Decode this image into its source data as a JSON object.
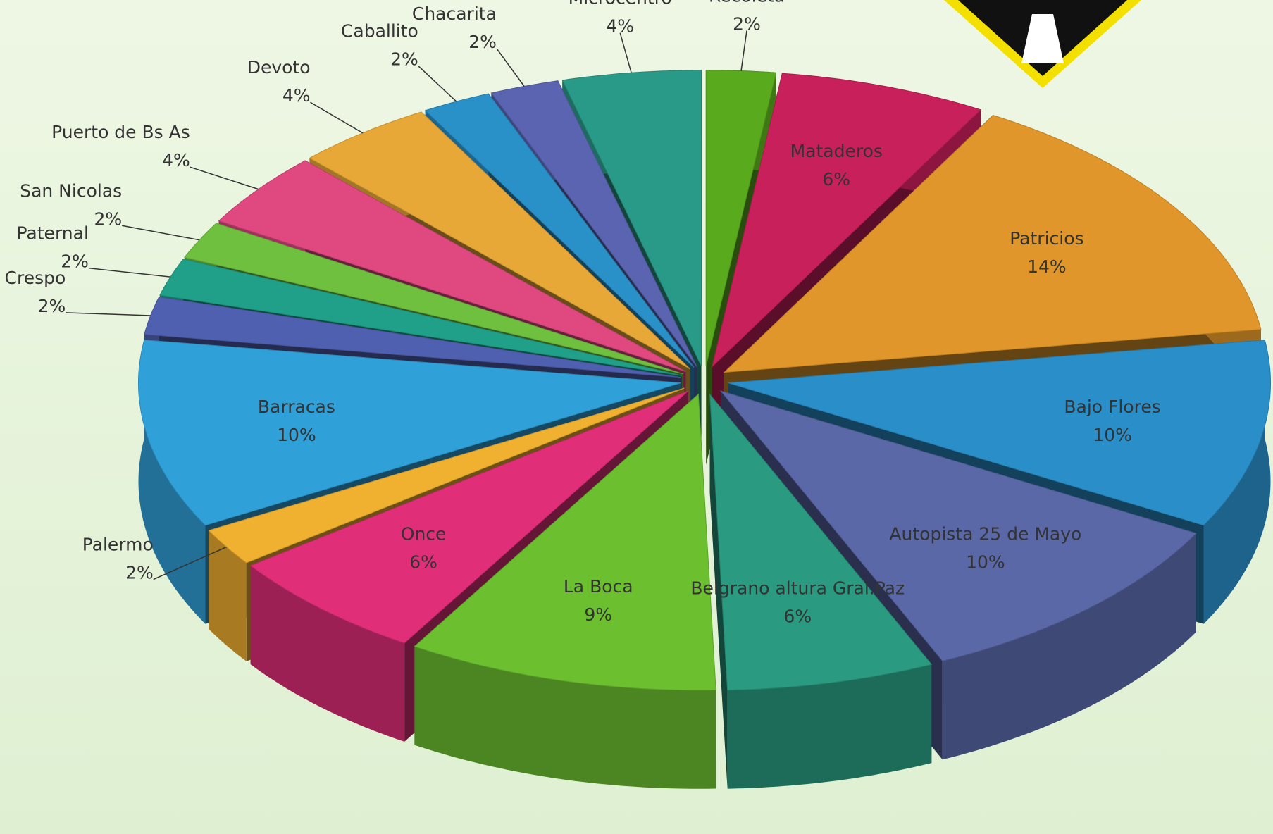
{
  "chart_data": {
    "type": "pie",
    "categories": [
      "Recoleta",
      "Mataderos",
      "Patricios",
      "Bajo Flores",
      "Autopista 25 de Mayo",
      "Belgrano altura Gral.Paz",
      "La Boca",
      "Once",
      "Palermo",
      "Barracas",
      "Villa Crespo",
      "Paternal",
      "San Nicolas",
      "Puerto de Bs As",
      "Devoto",
      "Caballito",
      "Chacarita",
      "Microcentro"
    ],
    "values": [
      2,
      6,
      14,
      10,
      10,
      6,
      9,
      6,
      2,
      10,
      2,
      2,
      2,
      4,
      4,
      2,
      2,
      4
    ],
    "value_labels": [
      "2%",
      "6%",
      "14%",
      "10%",
      "10%",
      "6%",
      "9%",
      "6%",
      "2%",
      "10%",
      "2%",
      "2%",
      "2%",
      "4%",
      "4%",
      "2%",
      "2%",
      "4%"
    ],
    "colors": [
      "#5aaa1e",
      "#c8205a",
      "#e0962a",
      "#2a8ec8",
      "#5a68a8",
      "#2a9a80",
      "#6cc030",
      "#e02e78",
      "#f0b030",
      "#30a0d8",
      "#5060b0",
      "#20a088",
      "#70c040",
      "#e04880",
      "#e8a838",
      "#2a90c8",
      "#5a64b0",
      "#2a9a88"
    ]
  }
}
